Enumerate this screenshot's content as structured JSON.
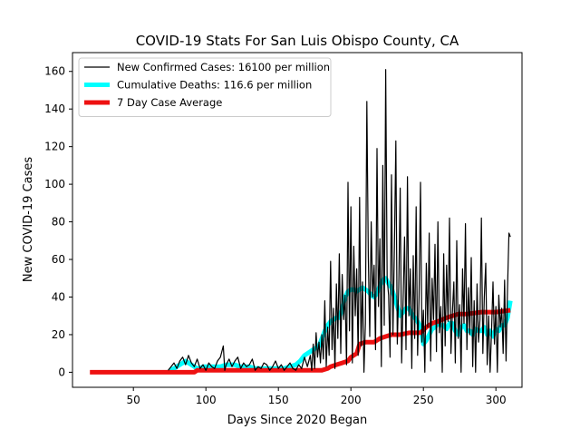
{
  "chart_data": {
    "type": "line",
    "title": "COVID-19 Stats For San Luis Obispo County, CA",
    "xlabel": "Days Since 2020 Began",
    "ylabel": "New COVID-19 Cases",
    "xlim": [
      8,
      318
    ],
    "ylim": [
      -8,
      170
    ],
    "xticks": [
      50,
      100,
      150,
      200,
      250,
      300
    ],
    "yticks": [
      0,
      20,
      40,
      60,
      80,
      100,
      120,
      140,
      160
    ],
    "grid": false,
    "legend_position": "top-left",
    "series": [
      {
        "name": "New Confirmed Cases: 16100 per million",
        "color": "#000000",
        "x": [
          74,
          76,
          78,
          80,
          82,
          84,
          86,
          88,
          90,
          92,
          94,
          96,
          98,
          100,
          102,
          104,
          106,
          108,
          110,
          112,
          113,
          114,
          116,
          118,
          120,
          122,
          124,
          126,
          128,
          130,
          132,
          134,
          136,
          138,
          140,
          142,
          144,
          146,
          148,
          150,
          152,
          154,
          156,
          158,
          160,
          162,
          164,
          166,
          168,
          170,
          172,
          173,
          174,
          175,
          176,
          177,
          178,
          179,
          180,
          181,
          182,
          183,
          184,
          185,
          186,
          187,
          188,
          189,
          190,
          191,
          192,
          193,
          194,
          195,
          196,
          197,
          198,
          199,
          200,
          201,
          202,
          203,
          204,
          205,
          206,
          207,
          208,
          209,
          210,
          211,
          212,
          213,
          214,
          215,
          216,
          217,
          218,
          219,
          220,
          221,
          222,
          223,
          224,
          225,
          226,
          227,
          228,
          229,
          230,
          231,
          232,
          233,
          234,
          235,
          236,
          237,
          238,
          239,
          240,
          241,
          242,
          243,
          244,
          245,
          246,
          247,
          248,
          249,
          250,
          251,
          252,
          253,
          254,
          255,
          256,
          257,
          258,
          259,
          260,
          261,
          262,
          263,
          264,
          265,
          266,
          267,
          268,
          269,
          270,
          271,
          272,
          273,
          274,
          275,
          276,
          277,
          278,
          279,
          280,
          281,
          282,
          283,
          284,
          285,
          286,
          287,
          288,
          289,
          290,
          291,
          292,
          293,
          294,
          295,
          296,
          297,
          298,
          299,
          300,
          301,
          302,
          303,
          304,
          305,
          306,
          307,
          308,
          309,
          310
        ],
        "y": [
          1,
          3,
          5,
          2,
          6,
          8,
          4,
          9,
          5,
          3,
          7,
          2,
          4,
          1,
          5,
          3,
          2,
          6,
          8,
          14,
          1,
          4,
          7,
          3,
          6,
          8,
          2,
          5,
          3,
          4,
          7,
          1,
          3,
          2,
          5,
          4,
          1,
          3,
          6,
          2,
          4,
          1,
          3,
          5,
          2,
          1,
          4,
          2,
          8,
          3,
          9,
          1,
          15,
          2,
          21,
          8,
          16,
          5,
          20,
          7,
          38,
          3,
          24,
          9,
          59,
          12,
          34,
          2,
          47,
          18,
          63,
          10,
          52,
          28,
          41,
          4,
          101,
          22,
          88,
          5,
          67,
          30,
          55,
          9,
          93,
          14,
          48,
          0,
          26,
          144,
          62,
          19,
          80,
          40,
          57,
          12,
          119,
          35,
          71,
          3,
          110,
          25,
          161,
          50,
          41,
          8,
          105,
          20,
          66,
          123,
          15,
          45,
          98,
          5,
          38,
          72,
          12,
          104,
          30,
          55,
          2,
          62,
          18,
          88,
          9,
          40,
          101,
          16,
          33,
          0,
          58,
          24,
          74,
          6,
          50,
          28,
          68,
          11,
          80,
          21,
          35,
          0,
          63,
          14,
          57,
          27,
          82,
          10,
          32,
          48,
          5,
          70,
          18,
          36,
          0,
          55,
          26,
          79,
          12,
          45,
          20,
          61,
          3,
          38,
          0,
          47,
          16,
          28,
          82,
          10,
          40,
          58,
          4,
          30,
          0,
          22,
          48,
          15,
          35,
          0,
          41,
          24,
          34,
          10,
          49,
          6,
          44,
          74,
          72
        ]
      },
      {
        "name": "Cumulative Deaths: 116.6 per million",
        "color": "#00ffff",
        "x": [
          75,
          78,
          80,
          82,
          84,
          86,
          88,
          90,
          92,
          94,
          96,
          98,
          100,
          103,
          106,
          110,
          114,
          117,
          120,
          123,
          126,
          130,
          134,
          138,
          142,
          146,
          150,
          154,
          158,
          162,
          165,
          168,
          170,
          172,
          174,
          176,
          178,
          180,
          182,
          184,
          186,
          188,
          190,
          192,
          194,
          196,
          198,
          200,
          202,
          204,
          206,
          208,
          210,
          212,
          214,
          216,
          218,
          220,
          222,
          224,
          226,
          228,
          230,
          232,
          234,
          236,
          238,
          240,
          242,
          244,
          246,
          248,
          250,
          252,
          254,
          256,
          258,
          260,
          262,
          264,
          266,
          268,
          270,
          272,
          274,
          276,
          278,
          280,
          282,
          284,
          286,
          288,
          290,
          292,
          294,
          296,
          298,
          300,
          302,
          304,
          306,
          308,
          310
        ],
        "y": [
          1,
          2,
          3,
          4,
          5,
          6,
          5,
          4,
          3,
          2,
          2,
          3,
          3,
          3,
          3,
          3,
          4,
          4,
          4,
          3,
          3,
          3,
          2,
          2,
          2,
          2,
          2,
          2,
          3,
          4,
          6,
          9,
          10,
          11,
          12,
          13,
          14,
          18,
          22,
          25,
          27,
          28,
          29,
          29,
          34,
          40,
          43,
          44,
          44,
          43,
          44,
          45,
          44,
          43,
          41,
          40,
          42,
          46,
          49,
          50,
          47,
          45,
          40,
          35,
          30,
          32,
          34,
          34,
          31,
          29,
          27,
          24,
          15,
          17,
          20,
          23,
          24,
          26,
          25,
          25,
          23,
          26,
          26,
          22,
          20,
          24,
          25,
          22,
          22,
          20,
          23,
          22,
          22,
          24,
          20,
          22,
          19,
          23,
          22,
          25,
          25,
          29,
          38
        ]
      },
      {
        "name": "7 Day Case Average",
        "color": "#ee1111",
        "x": [
          20,
          40,
          60,
          80,
          92,
          94,
          100,
          110,
          120,
          130,
          140,
          150,
          160,
          170,
          180,
          184,
          186,
          190,
          194,
          198,
          200,
          204,
          206,
          210,
          216,
          220,
          224,
          228,
          234,
          240,
          248,
          252,
          256,
          260,
          266,
          270,
          274,
          280,
          290,
          300,
          310
        ],
        "y": [
          0,
          0,
          0,
          0,
          0,
          1,
          1,
          1,
          1,
          1,
          1,
          1,
          1,
          1,
          1,
          2,
          3,
          4,
          5,
          6,
          8,
          10,
          15,
          16,
          16,
          18,
          19,
          20,
          20,
          21,
          21,
          24,
          26,
          27,
          29,
          30,
          31,
          31,
          32,
          32,
          33
        ]
      }
    ]
  }
}
